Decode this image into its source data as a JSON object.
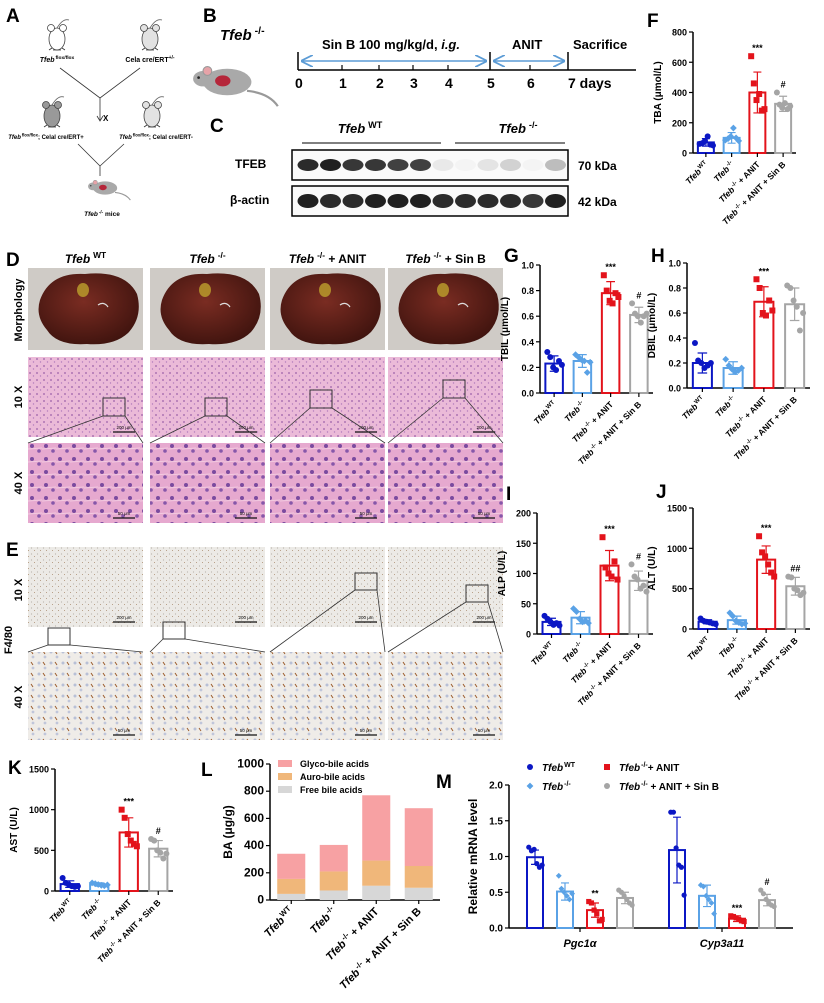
{
  "panel_labels": {
    "A": "A",
    "B": "B",
    "C": "C",
    "D": "D",
    "E": "E",
    "F": "F",
    "G": "G",
    "H": "H",
    "I": "I",
    "J": "J",
    "K": "K",
    "L": "L",
    "M": "M"
  },
  "colors": {
    "wt": "#0b17c4",
    "ko": "#5aa2e6",
    "anit": "#e3131b",
    "sinb": "#a5a5a5",
    "timeline_arrow": "#5b9bd5",
    "glyco": "#f7a1a3",
    "tauro": "#f0b77a",
    "free": "#d7d7d7"
  },
  "breeding": {
    "parent1_gene": "Tfeb",
    "parent1_sup": "flox/flox",
    "parent2": "Cela cre/ERT",
    "parent2_sup": "+/-",
    "cross_symbol": "X",
    "child1_gene": "Tfeb",
    "child1_sup": "flox/flox",
    "child1_rest": "; Celal cre/ERT+",
    "child2_gene": "Tfeb",
    "child2_sup": "flox/flox",
    "child2_rest": "; Celal cre/ERT-",
    "result_gene": "Tfeb",
    "result_sup": "-/-",
    "result_rest": " mice"
  },
  "timeline": {
    "strain_gene": "Tfeb",
    "strain_sup": "-/-",
    "sinb_label": "Sin B 100 mg/kg/d, ",
    "sinb_route": "i.g.",
    "anit_label": "ANIT",
    "sacrifice_label": "Sacrifice",
    "ticks": [
      "0",
      "1",
      "2",
      "3",
      "4",
      "5",
      "6",
      "7 days"
    ]
  },
  "western": {
    "group1_gene": "Tfeb",
    "group1_sup": "WT",
    "group2_gene": "Tfeb",
    "group2_sup": "-/-",
    "rows": [
      {
        "label": "TFEB",
        "size": "70 kDa",
        "band_intensity": [
          0.95,
          1,
          0.9,
          0.9,
          0.85,
          0.85,
          0.1,
          0.05,
          0.12,
          0.2,
          0.05,
          0.3
        ]
      },
      {
        "label": "β-actin",
        "size": "42 kDa",
        "band_intensity": [
          1,
          0.95,
          0.95,
          1,
          1,
          1,
          0.95,
          0.95,
          0.95,
          0.95,
          0.9,
          1
        ]
      }
    ]
  },
  "histology": {
    "columns": [
      {
        "gene": "Tfeb",
        "sup": "WT",
        "rest": ""
      },
      {
        "gene": "Tfeb",
        "sup": "-/-",
        "rest": ""
      },
      {
        "gene": "Tfeb",
        "sup": "-/-",
        "rest": " + ANIT"
      },
      {
        "gene": "Tfeb",
        "sup": "-/-",
        "rest": " + Sin B"
      }
    ],
    "d_rows": [
      "Morphology",
      "10 X",
      "40 X"
    ],
    "e_stain": "F4/80",
    "e_rows": [
      "10 X",
      "40 X"
    ],
    "scale_10x": "200 μm",
    "scale_40x": "50 μm"
  },
  "groups": [
    {
      "gene": "Tfeb",
      "sup": "WT",
      "rest": ""
    },
    {
      "gene": "Tfeb",
      "sup": "-/-",
      "rest": ""
    },
    {
      "gene": "Tfeb",
      "sup": "-/-",
      "rest": " + ANIT"
    },
    {
      "gene": "Tfeb",
      "sup": "-/-",
      "rest": " + ANIT + Sin B"
    }
  ],
  "chart_data": [
    {
      "id": "F",
      "type": "bar",
      "title": "",
      "ylabel": "TBA (μmol/L)",
      "ylim": [
        0,
        800
      ],
      "yticks": [
        0,
        200,
        400,
        600,
        800
      ],
      "series": [
        {
          "mean": 70,
          "sd": 25,
          "points": [
            60,
            65,
            80,
            110,
            55,
            50
          ],
          "sig": ""
        },
        {
          "mean": 100,
          "sd": 35,
          "points": [
            85,
            95,
            110,
            165,
            100,
            80
          ],
          "sig": ""
        },
        {
          "mean": 400,
          "sd": 135,
          "points": [
            640,
            460,
            350,
            390,
            280,
            290
          ],
          "sig": "***"
        },
        {
          "mean": 325,
          "sd": 50,
          "points": [
            400,
            320,
            300,
            330,
            290,
            310
          ],
          "sig": "#"
        }
      ]
    },
    {
      "id": "G",
      "type": "bar",
      "ylabel": "TBIL (μmol/L)",
      "ylim": [
        0,
        1
      ],
      "yticks": [
        "0.0",
        "0.2",
        "0.4",
        "0.6",
        "0.8",
        "1.0"
      ],
      "series": [
        {
          "mean": 0.23,
          "sd": 0.06,
          "points": [
            0.32,
            0.28,
            0.2,
            0.18,
            0.25,
            0.22
          ],
          "sig": ""
        },
        {
          "mean": 0.25,
          "sd": 0.05,
          "points": [
            0.3,
            0.28,
            0.26,
            0.25,
            0.16,
            0.24
          ],
          "sig": ""
        },
        {
          "mean": 0.78,
          "sd": 0.09,
          "points": [
            0.92,
            0.8,
            0.72,
            0.7,
            0.78,
            0.75
          ],
          "sig": "***"
        },
        {
          "mean": 0.61,
          "sd": 0.06,
          "points": [
            0.7,
            0.62,
            0.6,
            0.55,
            0.6,
            0.62
          ],
          "sig": "#"
        }
      ]
    },
    {
      "id": "H",
      "type": "bar",
      "ylabel": "DBIL (μmol/L)",
      "ylim": [
        0,
        1
      ],
      "yticks": [
        "0.0",
        "0.2",
        "0.4",
        "0.6",
        "0.8",
        "1.0"
      ],
      "series": [
        {
          "mean": 0.2,
          "sd": 0.08,
          "points": [
            0.36,
            0.22,
            0.2,
            0.16,
            0.18,
            0.2
          ],
          "sig": ""
        },
        {
          "mean": 0.16,
          "sd": 0.05,
          "points": [
            0.23,
            0.18,
            0.15,
            0.13,
            0.14,
            0.16
          ],
          "sig": ""
        },
        {
          "mean": 0.69,
          "sd": 0.12,
          "points": [
            0.87,
            0.8,
            0.6,
            0.58,
            0.7,
            0.62
          ],
          "sig": "***"
        },
        {
          "mean": 0.67,
          "sd": 0.13,
          "points": [
            0.82,
            0.8,
            0.7,
            0.65,
            0.46,
            0.6
          ],
          "sig": ""
        }
      ]
    },
    {
      "id": "I",
      "type": "bar",
      "ylabel": "ALP (U/L)",
      "ylim": [
        0,
        200
      ],
      "yticks": [
        0,
        50,
        100,
        150,
        200
      ],
      "series": [
        {
          "mean": 20,
          "sd": 6,
          "points": [
            30,
            25,
            20,
            15,
            18,
            14
          ],
          "sig": ""
        },
        {
          "mean": 27,
          "sd": 10,
          "points": [
            42,
            37,
            25,
            20,
            22,
            18
          ],
          "sig": ""
        },
        {
          "mean": 113,
          "sd": 25,
          "points": [
            160,
            110,
            100,
            95,
            120,
            90
          ],
          "sig": "***"
        },
        {
          "mean": 88,
          "sd": 16,
          "points": [
            115,
            95,
            90,
            75,
            80,
            70
          ],
          "sig": "#"
        }
      ]
    },
    {
      "id": "J",
      "type": "bar",
      "ylabel": "ALT (U/L)",
      "ylim": [
        0,
        1500
      ],
      "yticks": [
        0,
        500,
        1000,
        1500
      ],
      "series": [
        {
          "mean": 90,
          "sd": 25,
          "points": [
            130,
            100,
            90,
            80,
            70,
            60
          ],
          "sig": ""
        },
        {
          "mean": 110,
          "sd": 50,
          "points": [
            200,
            160,
            100,
            80,
            60,
            70
          ],
          "sig": ""
        },
        {
          "mean": 860,
          "sd": 170,
          "points": [
            1150,
            950,
            900,
            800,
            700,
            650
          ],
          "sig": "***"
        },
        {
          "mean": 530,
          "sd": 110,
          "points": [
            650,
            640,
            500,
            480,
            420,
            450
          ],
          "sig": "##"
        }
      ]
    },
    {
      "id": "K",
      "type": "bar",
      "ylabel": "AST (U/L)",
      "ylim": [
        0,
        1500
      ],
      "yticks": [
        0,
        500,
        1000,
        1500
      ],
      "series": [
        {
          "mean": 85,
          "sd": 40,
          "points": [
            160,
            100,
            80,
            60,
            50,
            60
          ],
          "sig": ""
        },
        {
          "mean": 80,
          "sd": 20,
          "points": [
            100,
            90,
            80,
            70,
            65,
            75
          ],
          "sig": ""
        },
        {
          "mean": 720,
          "sd": 180,
          "points": [
            1000,
            900,
            700,
            620,
            580,
            550
          ],
          "sig": "***"
        },
        {
          "mean": 520,
          "sd": 100,
          "points": [
            640,
            620,
            500,
            470,
            400,
            460
          ],
          "sig": "#"
        }
      ]
    },
    {
      "id": "L",
      "type": "stacked-bar",
      "ylabel": "BA (μg/g)",
      "ylim": [
        0,
        1000
      ],
      "yticks": [
        0,
        200,
        400,
        600,
        800,
        1000
      ],
      "legend": [
        "Glyco-bile acids",
        "Auro-bile acids",
        "Free bile acids"
      ],
      "series": [
        {
          "name": "Free bile acids",
          "values": [
            45,
            70,
            105,
            90
          ]
        },
        {
          "name": "Auro-bile acids",
          "values": [
            110,
            140,
            185,
            160
          ]
        },
        {
          "name": "Glyco-bile acids",
          "values": [
            185,
            195,
            480,
            425
          ]
        }
      ]
    },
    {
      "id": "M",
      "type": "grouped-bar",
      "ylabel": "Relative  mRNA level",
      "ylim": [
        0,
        2
      ],
      "yticks": [
        "0.0",
        "0.5",
        "1.0",
        "1.5",
        "2.0"
      ],
      "legend": [
        {
          "gene": "Tfeb",
          "sup": "WT",
          "rest": ""
        },
        {
          "gene": "Tfeb",
          "sup": "-/-",
          "rest": ""
        },
        {
          "gene": "Tfeb",
          "sup": "-/-",
          "rest": "+ ANIT"
        },
        {
          "gene": "Tfeb",
          "sup": "-/-",
          "rest": " + ANIT + Sin B"
        }
      ],
      "categories": [
        "Pgc1α",
        "Cyp3a11"
      ],
      "clusters": [
        [
          {
            "mean": 0.99,
            "sd": 0.1,
            "points": [
              1.13,
              1.08,
              1.1,
              0.9,
              0.85,
              0.88
            ],
            "sig": ""
          },
          {
            "mean": 0.51,
            "sd": 0.12,
            "points": [
              0.73,
              0.55,
              0.5,
              0.45,
              0.4,
              0.48
            ],
            "sig": ""
          },
          {
            "mean": 0.25,
            "sd": 0.1,
            "points": [
              0.37,
              0.35,
              0.25,
              0.2,
              0.1,
              0.12
            ],
            "sig": "**"
          },
          {
            "mean": 0.42,
            "sd": 0.08,
            "points": [
              0.53,
              0.5,
              0.45,
              0.4,
              0.35,
              0.32
            ],
            "sig": ""
          }
        ],
        [
          {
            "mean": 1.09,
            "sd": 0.46,
            "points": [
              1.62,
              1.62,
              1.12,
              0.88,
              0.85,
              0.46
            ],
            "sig": ""
          },
          {
            "mean": 0.45,
            "sd": 0.15,
            "points": [
              0.6,
              0.58,
              0.45,
              0.4,
              0.35,
              0.2
            ],
            "sig": ""
          },
          {
            "mean": 0.13,
            "sd": 0.04,
            "points": [
              0.17,
              0.16,
              0.14,
              0.12,
              0.1,
              0.09
            ],
            "sig": "***"
          },
          {
            "mean": 0.39,
            "sd": 0.08,
            "points": [
              0.53,
              0.48,
              0.4,
              0.35,
              0.32,
              0.3
            ],
            "sig": "#"
          }
        ]
      ]
    }
  ]
}
